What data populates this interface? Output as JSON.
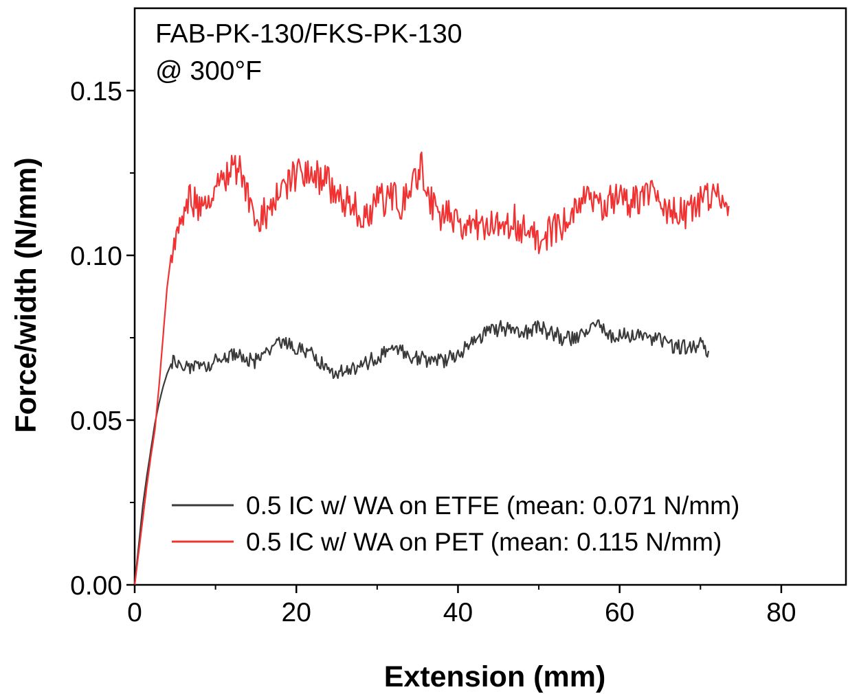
{
  "chart_data": {
    "type": "line",
    "title": "",
    "annotations": [
      "FAB-PK-130/FKS-PK-130",
      "@ 300°F"
    ],
    "xlabel": "Extension (mm)",
    "ylabel": "Force/width (N/mm)",
    "xlim": [
      0,
      88
    ],
    "ylim": [
      0,
      0.175
    ],
    "xticks": [
      0,
      20,
      40,
      60,
      80
    ],
    "xtick_labels": [
      "0",
      "20",
      "40",
      "60",
      "80"
    ],
    "yticks": [
      0.0,
      0.05,
      0.1,
      0.15
    ],
    "ytick_labels": [
      "0.00",
      "0.05",
      "0.10",
      "0.15"
    ],
    "grid": false,
    "legend_position": "lower-right",
    "series": [
      {
        "name": "0.5 IC w/ WA on ETFE (mean: 0.071 N/mm)",
        "color": "#3a3a3a",
        "points": [
          [
            0,
            0
          ],
          [
            0.5,
            0.012
          ],
          [
            1,
            0.024
          ],
          [
            1.5,
            0.033
          ],
          [
            2,
            0.041
          ],
          [
            2.5,
            0.049
          ],
          [
            3,
            0.055
          ],
          [
            3.5,
            0.06
          ],
          [
            4,
            0.064
          ],
          [
            4.5,
            0.067
          ],
          [
            5,
            0.068
          ],
          [
            6,
            0.067
          ],
          [
            7,
            0.066
          ],
          [
            8,
            0.066
          ],
          [
            9,
            0.067
          ],
          [
            10,
            0.068
          ],
          [
            11,
            0.069
          ],
          [
            12,
            0.07
          ],
          [
            13,
            0.069
          ],
          [
            14,
            0.068
          ],
          [
            15,
            0.068
          ],
          [
            16,
            0.069
          ],
          [
            17,
            0.071
          ],
          [
            18,
            0.073
          ],
          [
            19,
            0.073
          ],
          [
            20,
            0.072
          ],
          [
            21,
            0.071
          ],
          [
            22,
            0.07
          ],
          [
            23,
            0.068
          ],
          [
            24,
            0.066
          ],
          [
            25,
            0.064
          ],
          [
            26,
            0.065
          ],
          [
            27,
            0.066
          ],
          [
            28,
            0.067
          ],
          [
            29,
            0.068
          ],
          [
            30,
            0.069
          ],
          [
            31,
            0.07
          ],
          [
            32,
            0.071
          ],
          [
            33,
            0.071
          ],
          [
            34,
            0.07
          ],
          [
            35,
            0.069
          ],
          [
            36,
            0.068
          ],
          [
            37,
            0.068
          ],
          [
            38,
            0.068
          ],
          [
            39,
            0.069
          ],
          [
            40,
            0.07
          ],
          [
            41,
            0.072
          ],
          [
            42,
            0.074
          ],
          [
            43,
            0.076
          ],
          [
            44,
            0.077
          ],
          [
            45,
            0.078
          ],
          [
            46,
            0.078
          ],
          [
            47,
            0.078
          ],
          [
            48,
            0.077
          ],
          [
            49,
            0.077
          ],
          [
            50,
            0.078
          ],
          [
            51,
            0.077
          ],
          [
            52,
            0.076
          ],
          [
            53,
            0.075
          ],
          [
            54,
            0.075
          ],
          [
            55,
            0.076
          ],
          [
            56,
            0.077
          ],
          [
            57,
            0.079
          ],
          [
            58,
            0.078
          ],
          [
            59,
            0.076
          ],
          [
            60,
            0.075
          ],
          [
            61,
            0.076
          ],
          [
            62,
            0.076
          ],
          [
            63,
            0.075
          ],
          [
            64,
            0.075
          ],
          [
            65,
            0.074
          ],
          [
            66,
            0.073
          ],
          [
            67,
            0.072
          ],
          [
            68,
            0.072
          ],
          [
            69,
            0.072
          ],
          [
            70,
            0.073
          ],
          [
            71,
            0.071
          ]
        ],
        "noise": 0.0025
      },
      {
        "name": "0.5 IC w/ WA on PET (mean: 0.115 N/mm)",
        "color": "#f03232",
        "points": [
          [
            0,
            0
          ],
          [
            0.5,
            0.01
          ],
          [
            1,
            0.02
          ],
          [
            1.5,
            0.03
          ],
          [
            2,
            0.039
          ],
          [
            2.5,
            0.047
          ],
          [
            3,
            0.06
          ],
          [
            3.5,
            0.075
          ],
          [
            4,
            0.09
          ],
          [
            4.5,
            0.1
          ],
          [
            5,
            0.106
          ],
          [
            6,
            0.114
          ],
          [
            7,
            0.118
          ],
          [
            8,
            0.115
          ],
          [
            9,
            0.117
          ],
          [
            10,
            0.12
          ],
          [
            11,
            0.123
          ],
          [
            12,
            0.127
          ],
          [
            13,
            0.126
          ],
          [
            14,
            0.118
          ],
          [
            15,
            0.11
          ],
          [
            16,
            0.112
          ],
          [
            17,
            0.116
          ],
          [
            18,
            0.12
          ],
          [
            19,
            0.122
          ],
          [
            20,
            0.124
          ],
          [
            21,
            0.125
          ],
          [
            22,
            0.124
          ],
          [
            23,
            0.123
          ],
          [
            24,
            0.122
          ],
          [
            25,
            0.119
          ],
          [
            26,
            0.117
          ],
          [
            27,
            0.115
          ],
          [
            28,
            0.113
          ],
          [
            29,
            0.114
          ],
          [
            30,
            0.116
          ],
          [
            31,
            0.117
          ],
          [
            32,
            0.118
          ],
          [
            33,
            0.116
          ],
          [
            34,
            0.12
          ],
          [
            35,
            0.124
          ],
          [
            35.5,
            0.128
          ],
          [
            36,
            0.12
          ],
          [
            37,
            0.115
          ],
          [
            38,
            0.112
          ],
          [
            39,
            0.111
          ],
          [
            40,
            0.11
          ],
          [
            41,
            0.11
          ],
          [
            42,
            0.109
          ],
          [
            43,
            0.109
          ],
          [
            44,
            0.109
          ],
          [
            45,
            0.111
          ],
          [
            46,
            0.11
          ],
          [
            47,
            0.11
          ],
          [
            48,
            0.109
          ],
          [
            49,
            0.108
          ],
          [
            50,
            0.106
          ],
          [
            51,
            0.107
          ],
          [
            52,
            0.108
          ],
          [
            53,
            0.11
          ],
          [
            54,
            0.114
          ],
          [
            55,
            0.117
          ],
          [
            56,
            0.118
          ],
          [
            57,
            0.116
          ],
          [
            58,
            0.114
          ],
          [
            59,
            0.116
          ],
          [
            60,
            0.118
          ],
          [
            61,
            0.117
          ],
          [
            62,
            0.116
          ],
          [
            63,
            0.118
          ],
          [
            64,
            0.119
          ],
          [
            65,
            0.116
          ],
          [
            66,
            0.115
          ],
          [
            67,
            0.113
          ],
          [
            68,
            0.112
          ],
          [
            69,
            0.114
          ],
          [
            70,
            0.116
          ],
          [
            71,
            0.118
          ],
          [
            72,
            0.12
          ],
          [
            73,
            0.119
          ],
          [
            73.5,
            0.115
          ]
        ],
        "noise": 0.0055
      }
    ]
  }
}
